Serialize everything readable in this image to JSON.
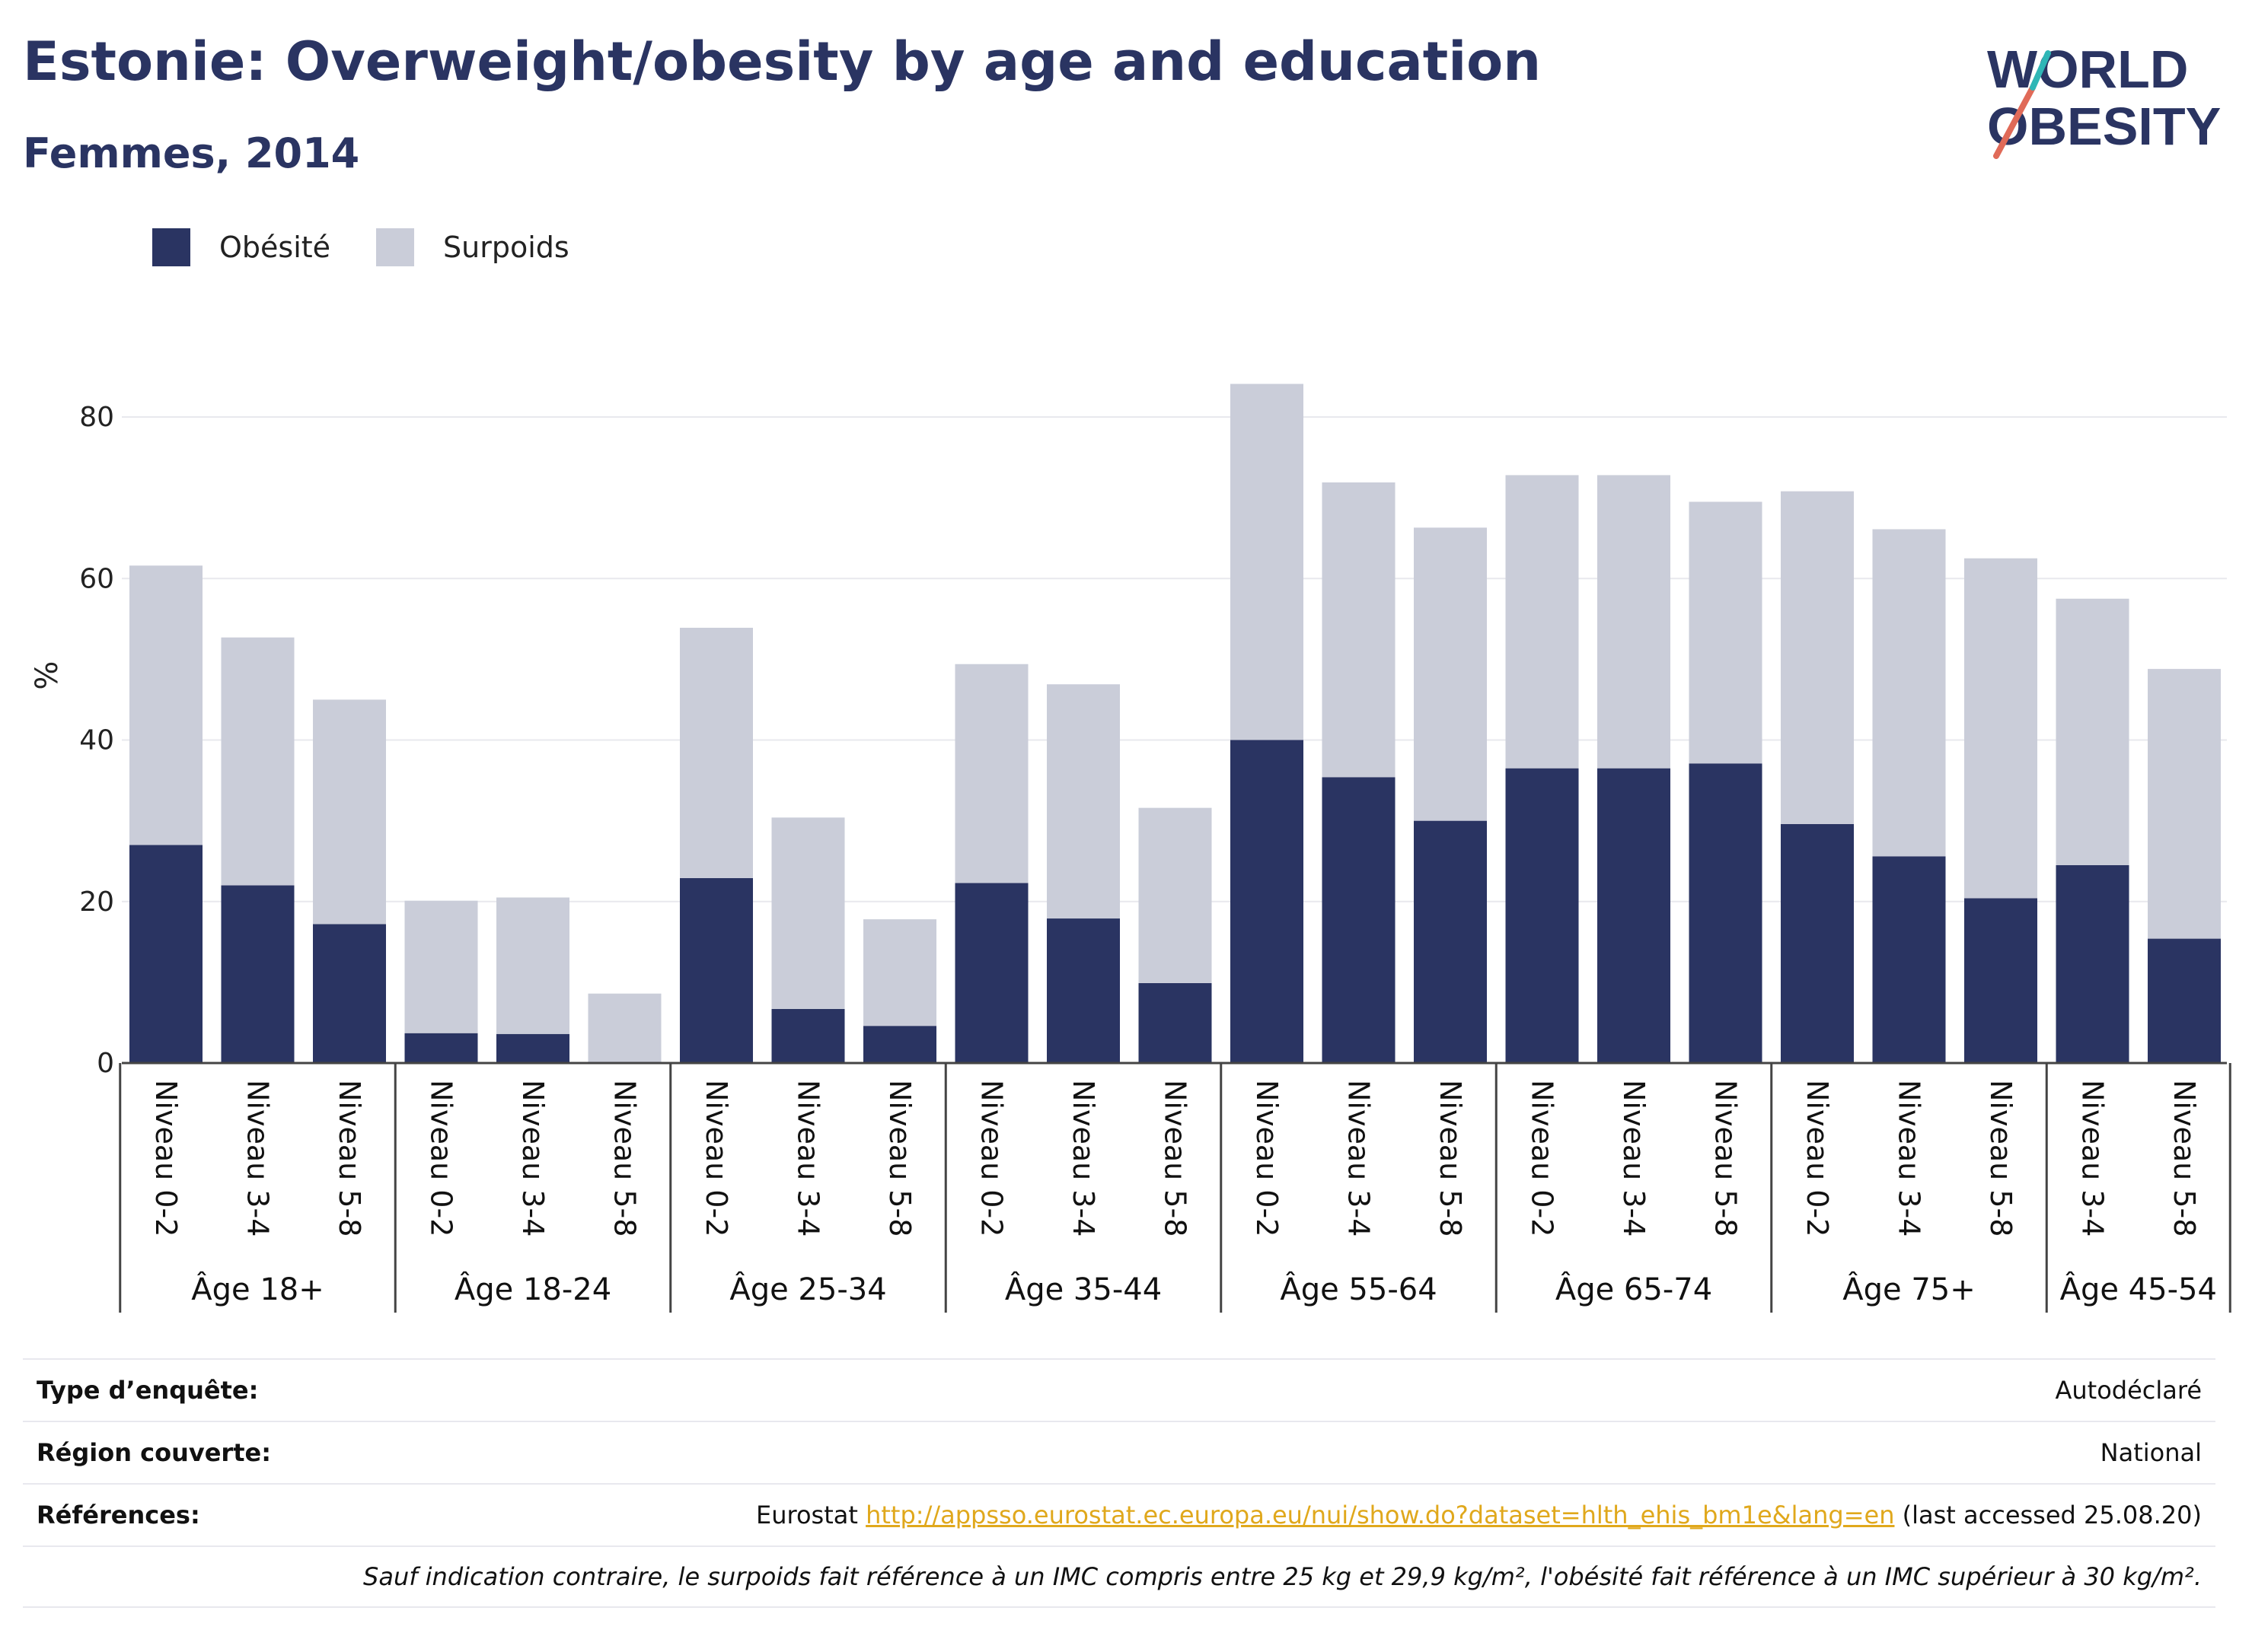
{
  "header": {
    "title": "Estonie: Overweight/obesity by age and education",
    "subtitle": "Femmes, 2014"
  },
  "logo": {
    "line1": "WORLD",
    "line2": "OBESITY"
  },
  "legend": [
    {
      "label": "Obésité",
      "color": "#2a3462"
    },
    {
      "label": "Surpoids",
      "color": "#cacdd9"
    }
  ],
  "chart_data": {
    "type": "bar",
    "stacked": true,
    "ylabel": "%",
    "ylim": [
      0,
      88
    ],
    "yticks": [
      0,
      20,
      40,
      60,
      80
    ],
    "grid": true,
    "legend_position": "top-left",
    "groups": [
      {
        "label": "Âge 18+",
        "categories": [
          "Niveau 0-2",
          "Niveau 3-4",
          "Niveau 5-8"
        ]
      },
      {
        "label": "Âge 18-24",
        "categories": [
          "Niveau 0-2",
          "Niveau 3-4",
          "Niveau 5-8"
        ]
      },
      {
        "label": "Âge 25-34",
        "categories": [
          "Niveau 0-2",
          "Niveau 3-4",
          "Niveau 5-8"
        ]
      },
      {
        "label": "Âge 35-44",
        "categories": [
          "Niveau 0-2",
          "Niveau 3-4",
          "Niveau 5-8"
        ]
      },
      {
        "label": "Âge 55-64",
        "categories": [
          "Niveau 0-2",
          "Niveau 3-4",
          "Niveau 5-8"
        ]
      },
      {
        "label": "Âge 65-74",
        "categories": [
          "Niveau 0-2",
          "Niveau 3-4",
          "Niveau 5-8"
        ]
      },
      {
        "label": "Âge 75+",
        "categories": [
          "Niveau 0-2",
          "Niveau 3-4",
          "Niveau 5-8"
        ]
      },
      {
        "label": "Âge 45-54",
        "categories": [
          "Niveau 3-4",
          "Niveau 5-8"
        ]
      }
    ],
    "series": [
      {
        "name": "Obésité",
        "color": "#2a3462",
        "values": [
          27.0,
          22.0,
          17.2,
          3.7,
          3.6,
          0,
          22.9,
          6.7,
          4.6,
          22.3,
          17.9,
          9.9,
          40.0,
          35.4,
          30.0,
          36.5,
          36.5,
          37.1,
          29.6,
          25.6,
          20.4,
          24.5,
          15.4
        ]
      },
      {
        "name": "Surpoids",
        "color": "#cacdd9",
        "values": [
          34.6,
          30.7,
          27.8,
          16.4,
          16.9,
          8.6,
          31.0,
          23.7,
          13.2,
          27.1,
          29.0,
          21.7,
          44.1,
          36.5,
          36.3,
          36.3,
          36.3,
          32.4,
          41.2,
          40.5,
          42.1,
          33.0,
          33.4
        ]
      }
    ]
  },
  "info": {
    "survey_label": "Type d’enquête:",
    "survey_value": "Autodéclaré",
    "region_label": "Région couverte:",
    "region_value": "National",
    "references_label": "Références:",
    "references_prefix": "Eurostat ",
    "references_link": "http://appsso.eurostat.ec.europa.eu/nui/show.do?dataset=hlth_ehis_bm1e&lang=en",
    "references_suffix": " (last accessed 25.08.20)",
    "note": "Sauf indication contraire, le surpoids fait référence à un IMC compris entre 25 kg et 29,9 kg/m², l'obésité fait référence à un IMC supérieur à 30 kg/m²."
  }
}
